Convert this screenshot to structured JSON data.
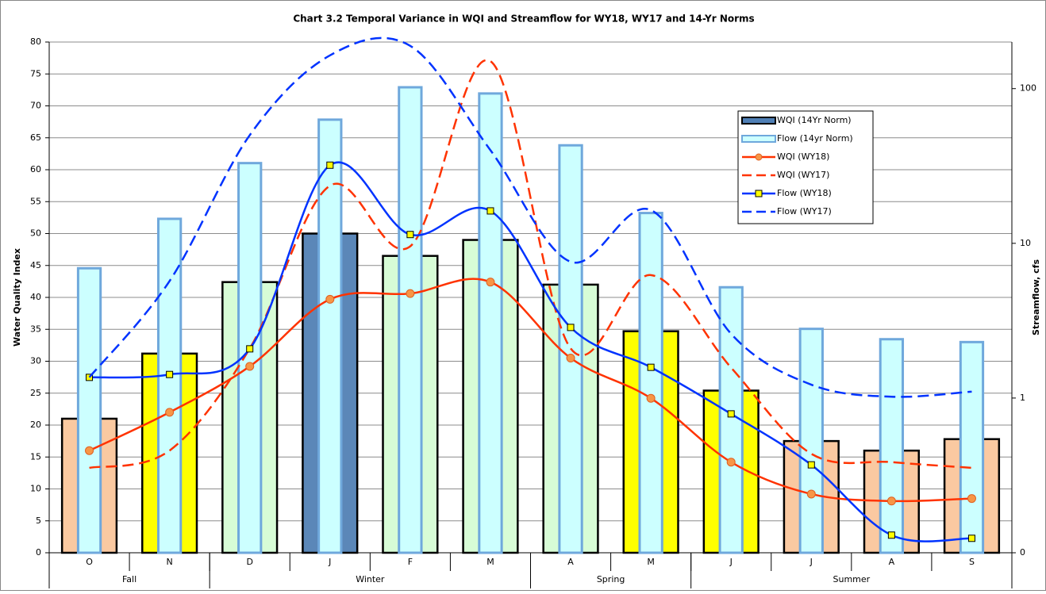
{
  "chart_data": {
    "type": "combo",
    "title": "Chart 3.2  Temporal Variance in WQI and Streamflow for WY18, WY17 and 14-Yr Norms",
    "y_label": "Water Quality Index",
    "y2_label": "Streamflow, cfs",
    "categories": [
      "O",
      "N",
      "D",
      "J",
      "F",
      "M",
      "A",
      "M",
      "J",
      "J",
      "A",
      "S"
    ],
    "category_groups": [
      {
        "name": "Fall",
        "count": 2
      },
      {
        "name": "Winter",
        "count": 4
      },
      {
        "name": "Spring",
        "count": 2
      },
      {
        "name": "Summer",
        "count": 4
      }
    ],
    "ylim": [
      0,
      80
    ],
    "yticks": [
      0,
      5,
      10,
      15,
      20,
      25,
      30,
      35,
      40,
      45,
      50,
      55,
      60,
      65,
      70,
      75,
      80
    ],
    "y2lim": [
      0.1,
      200
    ],
    "y2ticks": [
      {
        "value": 0.1,
        "label": "0"
      },
      1,
      10,
      100
    ],
    "y2_log": true,
    "grid": true,
    "legend": "upper-right",
    "series": [
      {
        "name": "WQI (14Yr Norm)",
        "kind": "bar",
        "color": "#4f7fb5",
        "colors": [
          "#fac9a1",
          "#ffff00",
          "#d7fcd6",
          "#5b87b8",
          "#d7fcd6",
          "#d7fcd6",
          "#d7fcd6",
          "#ffff00",
          "#ffff00",
          "#fac9a1",
          "#fac9a1",
          "#fac9a1"
        ],
        "values": [
          21,
          31.2,
          42.4,
          50,
          46.5,
          49,
          42,
          34.7,
          25.4,
          17.5,
          16,
          17.8
        ]
      },
      {
        "name": "Flow (14yr Norm)",
        "kind": "bar",
        "axis": "y2",
        "color": "#ccffff",
        "edge": "#6fa8dc",
        "values": [
          6.9,
          14.4,
          33,
          63,
          102,
          93,
          43,
          15.7,
          5.2,
          2.8,
          2.4,
          2.3
        ]
      },
      {
        "name": "WQI (WY18)",
        "kind": "line",
        "color": "#ff3300",
        "marker": "circle",
        "marker_color": "#f79646",
        "style": "solid",
        "values": [
          16,
          22,
          29.2,
          39.7,
          40.6,
          42.4,
          30.5,
          24.2,
          14.2,
          9.2,
          8.1,
          8.5
        ]
      },
      {
        "name": "WQI (WY17)",
        "kind": "line",
        "color": "#ff3300",
        "style": "dashed",
        "values": [
          13.3,
          16,
          32,
          57.5,
          48,
          77,
          32,
          43.5,
          29,
          15.5,
          14.2,
          13.3
        ]
      },
      {
        "name": "Flow (WY18)",
        "kind": "line",
        "axis": "y2",
        "color": "#0033ff",
        "marker": "square",
        "marker_color": "#ffff00",
        "style": "solid",
        "values": [
          1.36,
          1.42,
          2.08,
          32,
          11.4,
          16.2,
          2.86,
          1.58,
          0.79,
          0.37,
          0.13,
          0.124
        ]
      },
      {
        "name": "Flow (WY17)",
        "kind": "line",
        "axis": "y2",
        "color": "#0033ff",
        "style": "dashed",
        "values": [
          1.36,
          5.7,
          50,
          164,
          189,
          40,
          7.6,
          16.4,
          2.6,
          1.22,
          1.02,
          1.1
        ]
      }
    ]
  }
}
